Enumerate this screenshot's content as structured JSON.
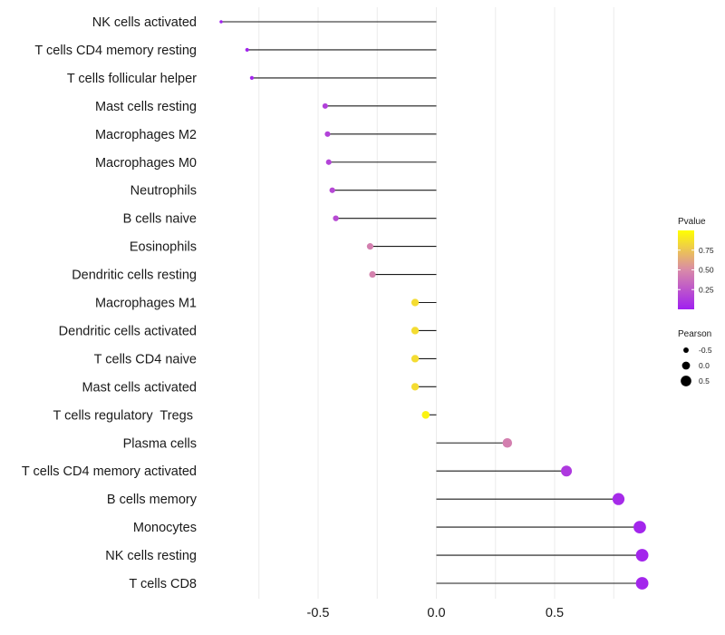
{
  "chart_data": {
    "type": "lollipop",
    "title": "",
    "xlabel": "",
    "ylabel": "",
    "xlim": [
      -0.97,
      0.97
    ],
    "x_ticks": [
      -0.5,
      0.0,
      0.5
    ],
    "x_tick_labels": [
      "-0.5",
      "0.0",
      "0.5"
    ],
    "grid": true,
    "baseline": 0.0,
    "categories": [
      "NK cells activated",
      "T cells CD4 memory resting",
      "T cells follicular helper",
      "Mast cells resting",
      "Macrophages M2",
      "Macrophages M0",
      "Neutrophils",
      "B cells naive",
      "Eosinophils",
      "Dendritic cells resting",
      "Macrophages M1",
      "Dendritic cells activated",
      "T cells CD4 naive",
      "Mast cells activated",
      "T cells regulatory  Tregs ",
      "Plasma cells",
      "T cells CD4 memory activated",
      "B cells memory",
      "Monocytes",
      "NK cells resting",
      "T cells CD8"
    ],
    "pearson": [
      -0.91,
      -0.8,
      -0.78,
      -0.47,
      -0.46,
      -0.455,
      -0.44,
      -0.425,
      -0.28,
      -0.27,
      -0.09,
      -0.09,
      -0.09,
      -0.09,
      -0.045,
      0.3,
      0.55,
      0.77,
      0.86,
      0.87,
      0.87
    ],
    "pvalue": [
      0.01,
      0.02,
      0.03,
      0.15,
      0.16,
      0.17,
      0.19,
      0.2,
      0.45,
      0.46,
      0.85,
      0.85,
      0.85,
      0.85,
      0.95,
      0.45,
      0.12,
      0.05,
      0.03,
      0.03,
      0.03
    ],
    "legend": {
      "placement": "right",
      "color_title": "Pvalue",
      "color_ticks": [
        0.25,
        0.5,
        0.75
      ],
      "color_tick_labels": [
        "0.25",
        "0.50",
        "0.75"
      ],
      "color_range": [
        0.0,
        1.0
      ],
      "color_low": "#a020f0",
      "color_mid": "#d98aa8",
      "color_high": "#ffff00",
      "size_title": "Pearson",
      "size_values": [
        -0.5,
        0.0,
        0.5
      ],
      "size_labels": [
        "-0.5",
        "0.0",
        "0.5"
      ]
    },
    "colors": {
      "segment": "#1a1a1a",
      "gridline": "#ebebeb"
    }
  }
}
